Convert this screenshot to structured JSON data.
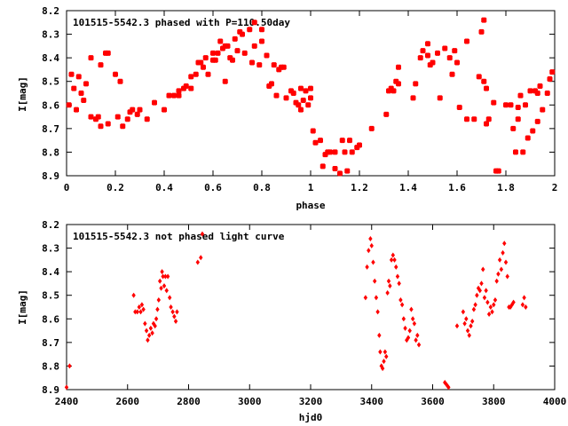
{
  "chart_data": [
    {
      "type": "scatter",
      "title": "101515-5542.3 phased with P=110.50day",
      "xlabel": "phase",
      "ylabel": "I[mag]",
      "xlim": [
        0,
        2
      ],
      "ylim": [
        8.9,
        8.2
      ],
      "y_inverted": true,
      "xticks": [
        "0",
        "0.2",
        "0.4",
        "0.6",
        "0.8",
        "1",
        "1.2",
        "1.4",
        "1.6",
        "1.8",
        "2"
      ],
      "yticks": [
        "8.2",
        "8.3",
        "8.4",
        "8.5",
        "8.6",
        "8.7",
        "8.8",
        "8.9"
      ],
      "marker_color": "#ff0000",
      "marker": "filled-square",
      "points": [
        [
          0.01,
          8.6
        ],
        [
          0.02,
          8.47
        ],
        [
          0.03,
          8.53
        ],
        [
          0.04,
          8.62
        ],
        [
          0.05,
          8.48
        ],
        [
          0.06,
          8.55
        ],
        [
          0.07,
          8.58
        ],
        [
          0.08,
          8.51
        ],
        [
          0.1,
          8.4
        ],
        [
          0.1,
          8.65
        ],
        [
          0.12,
          8.66
        ],
        [
          0.13,
          8.65
        ],
        [
          0.14,
          8.69
        ],
        [
          0.14,
          8.43
        ],
        [
          0.16,
          8.38
        ],
        [
          0.17,
          8.38
        ],
        [
          0.17,
          8.68
        ],
        [
          0.2,
          8.47
        ],
        [
          0.21,
          8.65
        ],
        [
          0.22,
          8.5
        ],
        [
          0.23,
          8.69
        ],
        [
          0.25,
          8.66
        ],
        [
          0.26,
          8.63
        ],
        [
          0.27,
          8.62
        ],
        [
          0.29,
          8.64
        ],
        [
          0.3,
          8.62
        ],
        [
          0.33,
          8.66
        ],
        [
          0.36,
          8.59
        ],
        [
          0.4,
          8.62
        ],
        [
          0.42,
          8.56
        ],
        [
          0.44,
          8.56
        ],
        [
          0.46,
          8.54
        ],
        [
          0.46,
          8.56
        ],
        [
          0.48,
          8.53
        ],
        [
          0.49,
          8.52
        ],
        [
          0.51,
          8.48
        ],
        [
          0.51,
          8.53
        ],
        [
          0.53,
          8.47
        ],
        [
          0.54,
          8.42
        ],
        [
          0.55,
          8.42
        ],
        [
          0.56,
          8.44
        ],
        [
          0.57,
          8.4
        ],
        [
          0.58,
          8.47
        ],
        [
          0.6,
          8.38
        ],
        [
          0.6,
          8.41
        ],
        [
          0.61,
          8.41
        ],
        [
          0.62,
          8.38
        ],
        [
          0.63,
          8.33
        ],
        [
          0.64,
          8.36
        ],
        [
          0.65,
          8.35
        ],
        [
          0.65,
          8.5
        ],
        [
          0.66,
          8.35
        ],
        [
          0.67,
          8.4
        ],
        [
          0.68,
          8.41
        ],
        [
          0.69,
          8.32
        ],
        [
          0.7,
          8.37
        ],
        [
          0.71,
          8.29
        ],
        [
          0.72,
          8.3
        ],
        [
          0.73,
          8.38
        ],
        [
          0.75,
          8.28
        ],
        [
          0.76,
          8.42
        ],
        [
          0.77,
          8.35
        ],
        [
          0.77,
          8.25
        ],
        [
          0.79,
          8.43
        ],
        [
          0.8,
          8.28
        ],
        [
          0.8,
          8.33
        ],
        [
          0.82,
          8.39
        ],
        [
          0.83,
          8.52
        ],
        [
          0.84,
          8.51
        ],
        [
          0.85,
          8.43
        ],
        [
          0.86,
          8.56
        ],
        [
          0.87,
          8.45
        ],
        [
          0.88,
          8.44
        ],
        [
          0.89,
          8.44
        ],
        [
          0.9,
          8.57
        ],
        [
          0.92,
          8.54
        ],
        [
          0.93,
          8.55
        ],
        [
          0.94,
          8.59
        ],
        [
          0.95,
          8.6
        ],
        [
          0.96,
          8.53
        ],
        [
          0.96,
          8.62
        ],
        [
          0.97,
          8.58
        ],
        [
          0.98,
          8.54
        ],
        [
          0.99,
          8.6
        ],
        [
          1.0,
          8.57
        ],
        [
          1.0,
          8.53
        ],
        [
          1.01,
          8.71
        ],
        [
          1.02,
          8.76
        ],
        [
          1.04,
          8.75
        ],
        [
          1.05,
          8.86
        ],
        [
          1.06,
          8.81
        ],
        [
          1.07,
          8.8
        ],
        [
          1.08,
          8.8
        ],
        [
          1.1,
          8.8
        ],
        [
          1.1,
          8.87
        ],
        [
          1.12,
          8.89
        ],
        [
          1.13,
          8.75
        ],
        [
          1.14,
          8.8
        ],
        [
          1.15,
          8.88
        ],
        [
          1.16,
          8.75
        ],
        [
          1.17,
          8.8
        ],
        [
          1.19,
          8.78
        ],
        [
          1.2,
          8.77
        ],
        [
          1.25,
          8.7
        ],
        [
          1.31,
          8.64
        ],
        [
          1.32,
          8.54
        ],
        [
          1.33,
          8.53
        ],
        [
          1.34,
          8.54
        ],
        [
          1.35,
          8.5
        ],
        [
          1.36,
          8.44
        ],
        [
          1.36,
          8.51
        ],
        [
          1.42,
          8.57
        ],
        [
          1.43,
          8.51
        ],
        [
          1.45,
          8.4
        ],
        [
          1.46,
          8.37
        ],
        [
          1.48,
          8.39
        ],
        [
          1.48,
          8.34
        ],
        [
          1.49,
          8.43
        ],
        [
          1.5,
          8.42
        ],
        [
          1.52,
          8.38
        ],
        [
          1.53,
          8.57
        ],
        [
          1.55,
          8.36
        ],
        [
          1.57,
          8.4
        ],
        [
          1.58,
          8.47
        ],
        [
          1.59,
          8.37
        ],
        [
          1.6,
          8.42
        ],
        [
          1.61,
          8.61
        ],
        [
          1.64,
          8.33
        ],
        [
          1.64,
          8.66
        ],
        [
          1.67,
          8.66
        ],
        [
          1.69,
          8.48
        ],
        [
          1.7,
          8.29
        ],
        [
          1.71,
          8.24
        ],
        [
          1.71,
          8.5
        ],
        [
          1.72,
          8.53
        ],
        [
          1.72,
          8.68
        ],
        [
          1.73,
          8.66
        ],
        [
          1.75,
          8.59
        ],
        [
          1.76,
          8.88
        ],
        [
          1.77,
          8.88
        ],
        [
          1.8,
          8.6
        ],
        [
          1.82,
          8.6
        ],
        [
          1.83,
          8.7
        ],
        [
          1.84,
          8.8
        ],
        [
          1.85,
          8.66
        ],
        [
          1.85,
          8.61
        ],
        [
          1.86,
          8.56
        ],
        [
          1.87,
          8.8
        ],
        [
          1.88,
          8.6
        ],
        [
          1.89,
          8.74
        ],
        [
          1.9,
          8.54
        ],
        [
          1.91,
          8.71
        ],
        [
          1.92,
          8.54
        ],
        [
          1.93,
          8.67
        ],
        [
          1.93,
          8.55
        ],
        [
          1.94,
          8.52
        ],
        [
          1.95,
          8.62
        ],
        [
          1.97,
          8.55
        ],
        [
          1.98,
          8.49
        ],
        [
          1.99,
          8.46
        ]
      ]
    },
    {
      "type": "scatter",
      "title": "101515-5542.3 not phased light curve",
      "xlabel": "hjd0",
      "ylabel": "I[mag]",
      "xlim": [
        2400,
        4000
      ],
      "ylim": [
        8.9,
        8.2
      ],
      "y_inverted": true,
      "xticks": [
        "2400",
        "2600",
        "2800",
        "3000",
        "3200",
        "3400",
        "3600",
        "3800",
        "4000"
      ],
      "yticks": [
        "8.2",
        "8.3",
        "8.4",
        "8.5",
        "8.6",
        "8.7",
        "8.8",
        "8.9"
      ],
      "marker_color": "#ff0000",
      "marker": "filled-diamond",
      "points": [
        [
          2400,
          8.89
        ],
        [
          2410,
          8.8
        ],
        [
          2620,
          8.5
        ],
        [
          2625,
          8.57
        ],
        [
          2632,
          8.57
        ],
        [
          2638,
          8.55
        ],
        [
          2643,
          8.57
        ],
        [
          2647,
          8.54
        ],
        [
          2652,
          8.56
        ],
        [
          2657,
          8.62
        ],
        [
          2662,
          8.65
        ],
        [
          2666,
          8.69
        ],
        [
          2671,
          8.67
        ],
        [
          2676,
          8.64
        ],
        [
          2681,
          8.66
        ],
        [
          2685,
          8.62
        ],
        [
          2690,
          8.63
        ],
        [
          2694,
          8.6
        ],
        [
          2698,
          8.56
        ],
        [
          2702,
          8.52
        ],
        [
          2706,
          8.44
        ],
        [
          2710,
          8.47
        ],
        [
          2713,
          8.4
        ],
        [
          2716,
          8.42
        ],
        [
          2720,
          8.46
        ],
        [
          2724,
          8.42
        ],
        [
          2728,
          8.48
        ],
        [
          2732,
          8.42
        ],
        [
          2738,
          8.51
        ],
        [
          2742,
          8.55
        ],
        [
          2748,
          8.57
        ],
        [
          2753,
          8.59
        ],
        [
          2758,
          8.61
        ],
        [
          2762,
          8.57
        ],
        [
          2830,
          8.36
        ],
        [
          2840,
          8.34
        ],
        [
          2845,
          8.24
        ],
        [
          3380,
          8.51
        ],
        [
          3385,
          8.38
        ],
        [
          3390,
          8.31
        ],
        [
          3396,
          8.26
        ],
        [
          3400,
          8.29
        ],
        [
          3405,
          8.36
        ],
        [
          3410,
          8.44
        ],
        [
          3415,
          8.51
        ],
        [
          3420,
          8.57
        ],
        [
          3425,
          8.67
        ],
        [
          3428,
          8.74
        ],
        [
          3432,
          8.8
        ],
        [
          3436,
          8.81
        ],
        [
          3440,
          8.78
        ],
        [
          3444,
          8.74
        ],
        [
          3448,
          8.76
        ],
        [
          3452,
          8.49
        ],
        [
          3456,
          8.44
        ],
        [
          3460,
          8.46
        ],
        [
          3465,
          8.35
        ],
        [
          3470,
          8.33
        ],
        [
          3475,
          8.35
        ],
        [
          3480,
          8.38
        ],
        [
          3485,
          8.42
        ],
        [
          3490,
          8.45
        ],
        [
          3495,
          8.52
        ],
        [
          3500,
          8.54
        ],
        [
          3505,
          8.6
        ],
        [
          3510,
          8.64
        ],
        [
          3515,
          8.69
        ],
        [
          3520,
          8.68
        ],
        [
          3525,
          8.65
        ],
        [
          3530,
          8.56
        ],
        [
          3535,
          8.6
        ],
        [
          3540,
          8.62
        ],
        [
          3545,
          8.69
        ],
        [
          3550,
          8.67
        ],
        [
          3555,
          8.71
        ],
        [
          3640,
          8.87
        ],
        [
          3646,
          8.88
        ],
        [
          3652,
          8.89
        ],
        [
          3680,
          8.63
        ],
        [
          3700,
          8.57
        ],
        [
          3705,
          8.62
        ],
        [
          3710,
          8.6
        ],
        [
          3715,
          8.65
        ],
        [
          3720,
          8.67
        ],
        [
          3725,
          8.63
        ],
        [
          3730,
          8.61
        ],
        [
          3735,
          8.56
        ],
        [
          3740,
          8.54
        ],
        [
          3745,
          8.5
        ],
        [
          3750,
          8.47
        ],
        [
          3755,
          8.48
        ],
        [
          3760,
          8.45
        ],
        [
          3765,
          8.39
        ],
        [
          3770,
          8.51
        ],
        [
          3775,
          8.48
        ],
        [
          3780,
          8.53
        ],
        [
          3785,
          8.58
        ],
        [
          3790,
          8.55
        ],
        [
          3795,
          8.57
        ],
        [
          3800,
          8.54
        ],
        [
          3805,
          8.52
        ],
        [
          3810,
          8.44
        ],
        [
          3815,
          8.41
        ],
        [
          3820,
          8.35
        ],
        [
          3825,
          8.39
        ],
        [
          3830,
          8.32
        ],
        [
          3835,
          8.28
        ],
        [
          3840,
          8.36
        ],
        [
          3845,
          8.42
        ],
        [
          3850,
          8.55
        ],
        [
          3855,
          8.55
        ],
        [
          3860,
          8.54
        ],
        [
          3865,
          8.53
        ],
        [
          3895,
          8.54
        ],
        [
          3900,
          8.51
        ],
        [
          3905,
          8.55
        ]
      ]
    }
  ]
}
